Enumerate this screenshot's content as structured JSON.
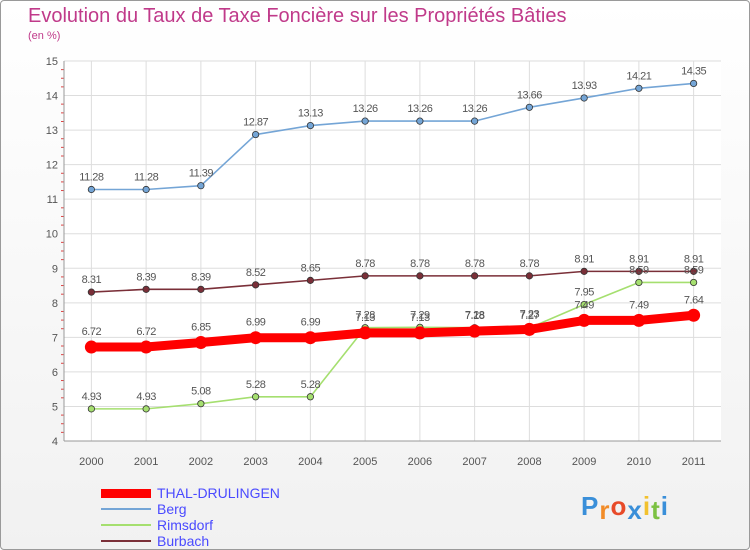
{
  "chart_data": {
    "type": "line",
    "title": "Evolution du Taux de Taxe Foncière sur les Propriétés Bâties",
    "subtitle": "(en %)",
    "x": [
      "2000",
      "2001",
      "2002",
      "2003",
      "2004",
      "2005",
      "2006",
      "2007",
      "2008",
      "2009",
      "2010",
      "2011"
    ],
    "ylim": [
      4,
      15
    ],
    "yticks": [
      "4",
      "5",
      "6",
      "7",
      "8",
      "9",
      "10",
      "11",
      "12",
      "13",
      "14",
      "15"
    ],
    "grid": true,
    "legend_position": "bottom-left",
    "series": [
      {
        "name": "THAL-DRULINGEN",
        "color": "#ff0000",
        "values": [
          6.72,
          6.72,
          6.85,
          6.99,
          6.99,
          7.13,
          7.13,
          7.18,
          7.23,
          7.49,
          7.49,
          7.64
        ],
        "labels": [
          "6.72",
          "6.72",
          "6.85",
          "6.99",
          "6.99",
          "7.13",
          "7.13",
          "7.18",
          "7.23",
          "7.49",
          "7.49",
          "7.64"
        ]
      },
      {
        "name": "Berg",
        "color": "#74a5d6",
        "values": [
          11.28,
          11.28,
          11.39,
          12.87,
          13.13,
          13.26,
          13.26,
          13.26,
          13.66,
          13.93,
          14.21,
          14.35
        ],
        "labels": [
          "11.28",
          "11.28",
          "11.39",
          "12.87",
          "13.13",
          "13.26",
          "13.26",
          "13.26",
          "13.66",
          "13.93",
          "14.21",
          "14.35"
        ]
      },
      {
        "name": "Rimsdorf",
        "color": "#a5df6f",
        "values": [
          4.93,
          4.93,
          5.08,
          5.28,
          5.28,
          7.28,
          7.29,
          7.28,
          7.27,
          7.95,
          8.59,
          8.59
        ],
        "labels": [
          "4.93",
          "4.93",
          "5.08",
          "5.28",
          "5.28",
          "7.28",
          "7.29",
          "7.28",
          "7.27",
          "7.95",
          "8.59",
          "8.59"
        ]
      },
      {
        "name": "Burbach",
        "color": "#7a2f38",
        "values": [
          8.31,
          8.39,
          8.39,
          8.52,
          8.65,
          8.78,
          8.78,
          8.78,
          8.78,
          8.91,
          8.91,
          8.91
        ],
        "labels": [
          "8.31",
          "8.39",
          "8.39",
          "8.52",
          "8.65",
          "8.78",
          "8.78",
          "8.78",
          "8.78",
          "8.91",
          "8.91",
          "8.91"
        ]
      }
    ]
  },
  "logo": {
    "letters": [
      "P",
      "r",
      "o",
      "x",
      "i",
      "t",
      "i"
    ],
    "colors": [
      "#3a8fd9",
      "#f28c28",
      "#e84b2a",
      "#3a8fd9",
      "#f2c12e",
      "#7cc142",
      "#3a8fd9"
    ]
  }
}
